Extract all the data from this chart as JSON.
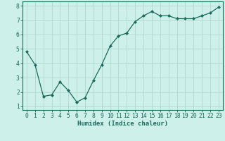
{
  "x": [
    0,
    1,
    2,
    3,
    4,
    5,
    6,
    7,
    8,
    9,
    10,
    11,
    12,
    13,
    14,
    15,
    16,
    17,
    18,
    19,
    20,
    21,
    22,
    23
  ],
  "y": [
    4.8,
    3.9,
    1.7,
    1.8,
    2.7,
    2.1,
    1.3,
    1.6,
    2.8,
    3.9,
    5.2,
    5.9,
    6.1,
    6.9,
    7.3,
    7.6,
    7.3,
    7.3,
    7.1,
    7.1,
    7.1,
    7.3,
    7.5,
    7.9
  ],
  "line_color": "#1a6b5a",
  "marker": "D",
  "marker_size": 2.2,
  "bg_color": "#cef0ea",
  "grid_color": "#b0d8d0",
  "xlabel": "Humidex (Indice chaleur)",
  "xlim": [
    -0.5,
    23.5
  ],
  "ylim": [
    0.75,
    8.3
  ],
  "yticks": [
    1,
    2,
    3,
    4,
    5,
    6,
    7,
    8
  ],
  "xticks": [
    0,
    1,
    2,
    3,
    4,
    5,
    6,
    7,
    8,
    9,
    10,
    11,
    12,
    13,
    14,
    15,
    16,
    17,
    18,
    19,
    20,
    21,
    22,
    23
  ],
  "xlabel_fontsize": 6.5,
  "tick_fontsize": 5.8,
  "border_color": "#1a6b5a"
}
